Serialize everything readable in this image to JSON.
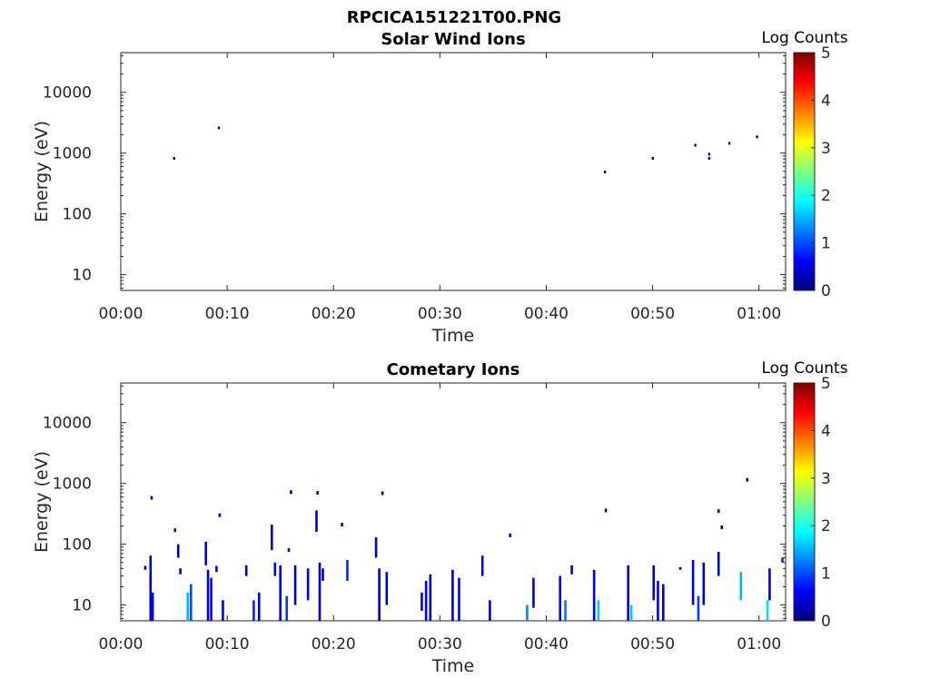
{
  "figure": {
    "title": "RPCICA151221T00.PNG"
  },
  "chart_data": [
    {
      "type": "heatmap",
      "title": "Solar Wind Ions",
      "xlabel": "Time",
      "ylabel": "Energy (eV)",
      "x_ticks": [
        "00:00",
        "00:10",
        "00:20",
        "00:30",
        "00:40",
        "00:50",
        "01:00"
      ],
      "y_ticks": [
        "10",
        "100",
        "1000",
        "10000"
      ],
      "y_scale": "log",
      "xlim_minutes": [
        0,
        62.5
      ],
      "ylim": [
        5.5,
        45000
      ],
      "colorbar": {
        "label": "Log Counts",
        "ticks": [
          "0",
          "1",
          "2",
          "3",
          "4",
          "5"
        ],
        "range": [
          0,
          5
        ],
        "colormap": "jet"
      },
      "points": [
        {
          "t": 5.0,
          "e": 820,
          "v": 0.3
        },
        {
          "t": 9.2,
          "e": 2600,
          "v": 0.3
        },
        {
          "t": 45.5,
          "e": 490,
          "v": 0.3
        },
        {
          "t": 50.0,
          "e": 820,
          "v": 0.3
        },
        {
          "t": 54.0,
          "e": 1350,
          "v": 0.3
        },
        {
          "t": 55.3,
          "e": 960,
          "v": 0.3
        },
        {
          "t": 55.3,
          "e": 820,
          "v": 0.3
        },
        {
          "t": 57.2,
          "e": 1450,
          "v": 0.3
        },
        {
          "t": 59.8,
          "e": 1850,
          "v": 0.3
        }
      ]
    },
    {
      "type": "heatmap",
      "title": "Cometary Ions",
      "xlabel": "Time",
      "ylabel": "Energy (eV)",
      "x_ticks": [
        "00:00",
        "00:10",
        "00:20",
        "00:30",
        "00:40",
        "00:50",
        "01:00"
      ],
      "y_ticks": [
        "10",
        "100",
        "1000",
        "10000"
      ],
      "y_scale": "log",
      "xlim_minutes": [
        0,
        62.5
      ],
      "ylim": [
        5.5,
        45000
      ],
      "colorbar": {
        "label": "Log Counts",
        "ticks": [
          "0",
          "1",
          "2",
          "3",
          "4",
          "5"
        ],
        "range": [
          0,
          5
        ],
        "colormap": "jet"
      },
      "columns": [
        {
          "t": 2.3,
          "lo": 38,
          "hi": 44,
          "v": 0.4
        },
        {
          "t": 2.8,
          "lo": 5.5,
          "hi": 65,
          "v": 0.3
        },
        {
          "t": 3.0,
          "lo": 5.5,
          "hi": 16,
          "v": 0.6
        },
        {
          "t": 2.9,
          "e": 580,
          "v": 0.3
        },
        {
          "t": 5.1,
          "e": 170,
          "v": 0.3
        },
        {
          "t": 5.4,
          "lo": 60,
          "hi": 100,
          "v": 0.3
        },
        {
          "t": 5.6,
          "lo": 32,
          "hi": 40,
          "v": 0.4
        },
        {
          "t": 6.3,
          "lo": 5.5,
          "hi": 16,
          "v": 1.5
        },
        {
          "t": 6.6,
          "lo": 5.5,
          "hi": 22,
          "v": 1.0
        },
        {
          "t": 8.0,
          "lo": 45,
          "hi": 110,
          "v": 0.4
        },
        {
          "t": 8.2,
          "lo": 5.5,
          "hi": 38,
          "v": 0.3
        },
        {
          "t": 8.5,
          "lo": 5.5,
          "hi": 28,
          "v": 0.6
        },
        {
          "t": 9.0,
          "lo": 35,
          "hi": 44,
          "v": 0.3
        },
        {
          "t": 9.3,
          "e": 300,
          "v": 0.3
        },
        {
          "t": 9.6,
          "lo": 5.5,
          "hi": 12,
          "v": 0.4
        },
        {
          "t": 11.8,
          "lo": 30,
          "hi": 45,
          "v": 0.3
        },
        {
          "t": 12.5,
          "lo": 5.5,
          "hi": 12,
          "v": 0.8
        },
        {
          "t": 13.0,
          "lo": 5.5,
          "hi": 16,
          "v": 0.4
        },
        {
          "t": 14.2,
          "lo": 80,
          "hi": 210,
          "v": 0.3
        },
        {
          "t": 14.5,
          "lo": 30,
          "hi": 50,
          "v": 0.4
        },
        {
          "t": 15.0,
          "lo": 5.5,
          "hi": 45,
          "v": 0.4
        },
        {
          "t": 15.6,
          "lo": 5.5,
          "hi": 14,
          "v": 0.9
        },
        {
          "t": 16.0,
          "e": 720,
          "v": 0.3
        },
        {
          "t": 15.8,
          "e": 80,
          "v": 0.3
        },
        {
          "t": 16.4,
          "lo": 10,
          "hi": 45,
          "v": 0.3
        },
        {
          "t": 17.6,
          "lo": 12,
          "hi": 40,
          "v": 0.4
        },
        {
          "t": 18.4,
          "lo": 160,
          "hi": 360,
          "v": 0.3
        },
        {
          "t": 18.5,
          "e": 700,
          "v": 0.3
        },
        {
          "t": 18.7,
          "lo": 5.5,
          "hi": 50,
          "v": 0.3
        },
        {
          "t": 19.0,
          "lo": 25,
          "hi": 40,
          "v": 0.3
        },
        {
          "t": 20.8,
          "e": 210,
          "v": 0.3
        },
        {
          "t": 21.3,
          "lo": 25,
          "hi": 55,
          "v": 0.8
        },
        {
          "t": 24.0,
          "lo": 60,
          "hi": 130,
          "v": 0.3
        },
        {
          "t": 24.3,
          "lo": 5.5,
          "hi": 40,
          "v": 0.3
        },
        {
          "t": 24.6,
          "e": 690,
          "v": 0.3
        },
        {
          "t": 25.0,
          "lo": 10,
          "hi": 35,
          "v": 0.4
        },
        {
          "t": 28.3,
          "lo": 8,
          "hi": 16,
          "v": 0.4
        },
        {
          "t": 28.7,
          "lo": 5.5,
          "hi": 25,
          "v": 0.5
        },
        {
          "t": 29.1,
          "lo": 5.5,
          "hi": 32,
          "v": 0.4
        },
        {
          "t": 31.2,
          "lo": 5.5,
          "hi": 38,
          "v": 0.3
        },
        {
          "t": 31.8,
          "lo": 5.5,
          "hi": 28,
          "v": 0.5
        },
        {
          "t": 34.0,
          "lo": 30,
          "hi": 65,
          "v": 0.3
        },
        {
          "t": 34.7,
          "lo": 5.5,
          "hi": 12,
          "v": 0.3
        },
        {
          "t": 36.6,
          "e": 140,
          "v": 0.3
        },
        {
          "t": 38.2,
          "lo": 5.5,
          "hi": 10,
          "v": 1.3
        },
        {
          "t": 38.8,
          "lo": 9,
          "hi": 28,
          "v": 0.4
        },
        {
          "t": 41.3,
          "lo": 5.5,
          "hi": 30,
          "v": 0.5
        },
        {
          "t": 41.8,
          "lo": 5.5,
          "hi": 12,
          "v": 1.2
        },
        {
          "t": 42.4,
          "lo": 32,
          "hi": 45,
          "v": 0.3
        },
        {
          "t": 44.5,
          "lo": 5.5,
          "hi": 38,
          "v": 0.6
        },
        {
          "t": 44.9,
          "lo": 5.5,
          "hi": 12,
          "v": 1.6
        },
        {
          "t": 45.6,
          "e": 360,
          "v": 0.3
        },
        {
          "t": 47.7,
          "lo": 5.5,
          "hi": 45,
          "v": 0.4
        },
        {
          "t": 48.0,
          "lo": 5.5,
          "hi": 10,
          "v": 1.6
        },
        {
          "t": 50.1,
          "lo": 12,
          "hi": 45,
          "v": 0.4
        },
        {
          "t": 50.5,
          "lo": 5.5,
          "hi": 25,
          "v": 0.5
        },
        {
          "t": 51.0,
          "lo": 5.5,
          "hi": 22,
          "v": 0.4
        },
        {
          "t": 52.6,
          "lo": 38,
          "hi": 42,
          "v": 0.3
        },
        {
          "t": 53.8,
          "lo": 10,
          "hi": 55,
          "v": 0.4
        },
        {
          "t": 54.3,
          "lo": 5.5,
          "hi": 14,
          "v": 0.9
        },
        {
          "t": 54.8,
          "lo": 10,
          "hi": 50,
          "v": 0.4
        },
        {
          "t": 56.2,
          "lo": 30,
          "hi": 75,
          "v": 0.3
        },
        {
          "t": 56.2,
          "e": 350,
          "v": 0.3
        },
        {
          "t": 56.5,
          "e": 190,
          "v": 0.3
        },
        {
          "t": 58.3,
          "lo": 12,
          "hi": 35,
          "v": 1.5
        },
        {
          "t": 58.9,
          "e": 1150,
          "v": 0.3
        },
        {
          "t": 60.8,
          "lo": 5.5,
          "hi": 12,
          "v": 1.7
        },
        {
          "t": 61.0,
          "lo": 12,
          "hi": 40,
          "v": 0.3
        },
        {
          "t": 62.2,
          "lo": 50,
          "hi": 60,
          "v": 0.8
        }
      ]
    }
  ]
}
